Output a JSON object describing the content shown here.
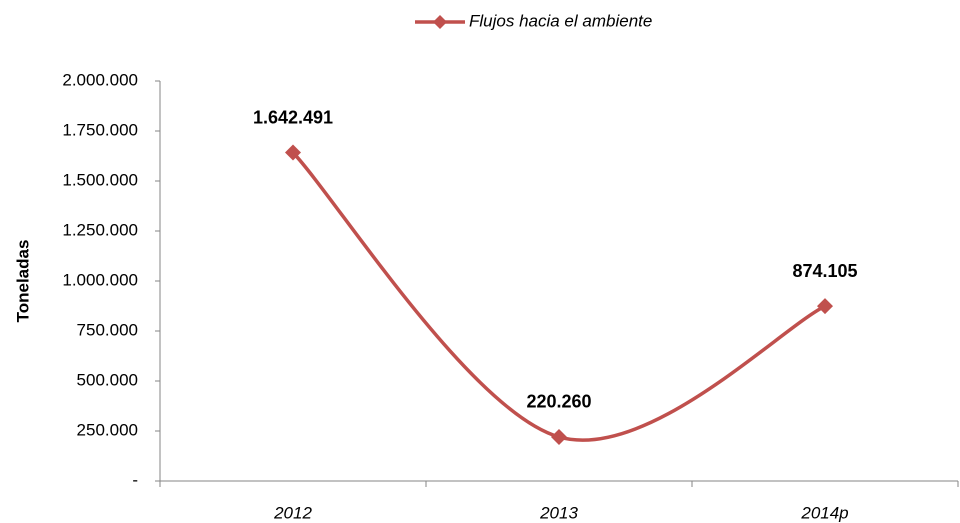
{
  "chart_data": {
    "type": "line",
    "y_label": "Toneladas",
    "categories": [
      "2012",
      "2013",
      "2014p"
    ],
    "series": [
      {
        "name": "Flujos hacia el ambiente",
        "color": "#c0504d",
        "values": [
          1642491,
          220260,
          874105
        ],
        "value_labels": [
          "1.642.491",
          "220.260",
          "874.105"
        ]
      }
    ],
    "ylim": [
      0,
      2000000
    ],
    "yticks": [
      {
        "value": 0,
        "label": "-"
      },
      {
        "value": 250000,
        "label": "250.000"
      },
      {
        "value": 500000,
        "label": "500.000"
      },
      {
        "value": 750000,
        "label": "750.000"
      },
      {
        "value": 1000000,
        "label": "1.000.000"
      },
      {
        "value": 1250000,
        "label": "1.250.000"
      },
      {
        "value": 1500000,
        "label": "1.500.000"
      },
      {
        "value": 1750000,
        "label": "1.750.000"
      },
      {
        "value": 2000000,
        "label": "2.000.000"
      }
    ],
    "smooth": true,
    "grid": false,
    "legend": "top"
  }
}
